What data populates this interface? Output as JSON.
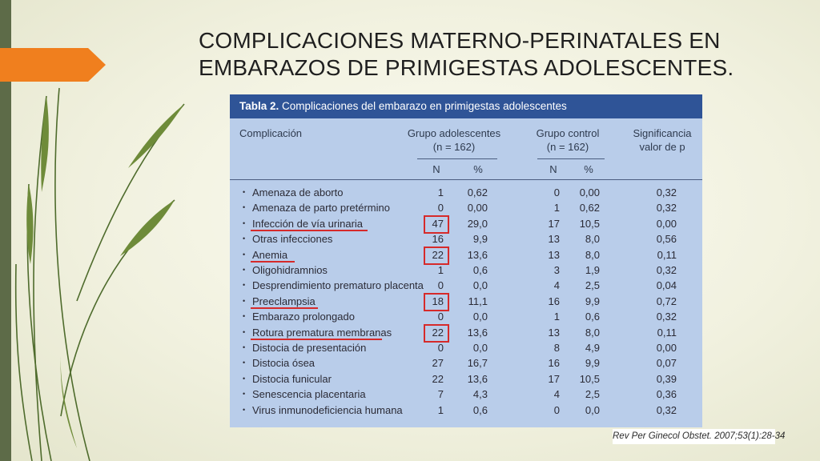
{
  "slide": {
    "title_line1": "COMPLICACIONES MATERNO-PERINATALES EN",
    "title_line2": "EMBARAZOS DE PRIMIGESTAS ADOLESCENTES.",
    "accent_color": "#f07f1e",
    "citation": "Rev Per Ginecol Obstet. 2007;53(1):28-34"
  },
  "table": {
    "caption_bold": "Tabla 2.",
    "caption_rest": " Complicaciones del embarazo en primigestas adolescentes",
    "headers": {
      "complication": "Complicación",
      "adolescent_group": "Grupo adolescentes",
      "adolescent_n": "(n = 162)",
      "control_group": "Grupo control",
      "control_n": "(n = 162)",
      "significance": "Significancia",
      "p_value": "valor de p",
      "n": "N",
      "pct": "%"
    },
    "bullet": "•",
    "rows": [
      {
        "name": "Amenaza de aborto",
        "a_n": "1",
        "a_pct": "0,62",
        "c_n": "0",
        "c_pct": "0,00",
        "p": "0,32",
        "highlight": false
      },
      {
        "name": "Amenaza de parto pretérmino",
        "a_n": "0",
        "a_pct": "0,00",
        "c_n": "1",
        "c_pct": "0,62",
        "p": "0,32",
        "highlight": false
      },
      {
        "name": "Infección de vía urinaria",
        "a_n": "47",
        "a_pct": "29,0",
        "c_n": "17",
        "c_pct": "10,5",
        "p": "0,00",
        "highlight": true
      },
      {
        "name": "Otras infecciones",
        "a_n": "16",
        "a_pct": "9,9",
        "c_n": "13",
        "c_pct": "8,0",
        "p": "0,56",
        "highlight": false
      },
      {
        "name": "Anemia",
        "a_n": "22",
        "a_pct": "13,6",
        "c_n": "13",
        "c_pct": "8,0",
        "p": "0,11",
        "highlight": true
      },
      {
        "name": "Oligohidramnios",
        "a_n": "1",
        "a_pct": "0,6",
        "c_n": "3",
        "c_pct": "1,9",
        "p": "0,32",
        "highlight": false
      },
      {
        "name": "Desprendimiento prematuro placenta",
        "a_n": "0",
        "a_pct": "0,0",
        "c_n": "4",
        "c_pct": "2,5",
        "p": "0,04",
        "highlight": false
      },
      {
        "name": "Preeclampsia",
        "a_n": "18",
        "a_pct": "11,1",
        "c_n": "16",
        "c_pct": "9,9",
        "p": "0,72",
        "highlight": true
      },
      {
        "name": "Embarazo prolongado",
        "a_n": "0",
        "a_pct": "0,0",
        "c_n": "1",
        "c_pct": "0,6",
        "p": "0,32",
        "highlight": false
      },
      {
        "name": "Rotura prematura membranas",
        "a_n": "22",
        "a_pct": "13,6",
        "c_n": "13",
        "c_pct": "8,0",
        "p": "0,11",
        "highlight": true
      },
      {
        "name": "Distocia de presentación",
        "a_n": "0",
        "a_pct": "0,0",
        "c_n": "8",
        "c_pct": "4,9",
        "p": "0,00",
        "highlight": false
      },
      {
        "name": "Distocia ósea",
        "a_n": "27",
        "a_pct": "16,7",
        "c_n": "16",
        "c_pct": "9,9",
        "p": "0,07",
        "highlight": false
      },
      {
        "name": "Distocia funicular",
        "a_n": "22",
        "a_pct": "13,6",
        "c_n": "17",
        "c_pct": "10,5",
        "p": "0,39",
        "highlight": false
      },
      {
        "name": "Senescencia placentaria",
        "a_n": "7",
        "a_pct": "4,3",
        "c_n": "4",
        "c_pct": "2,5",
        "p": "0,36",
        "highlight": false
      },
      {
        "name": "Virus inmunodeficiencia humana",
        "a_n": "1",
        "a_pct": "0,6",
        "c_n": "0",
        "c_pct": "0,0",
        "p": "0,32",
        "highlight": false
      }
    ]
  }
}
